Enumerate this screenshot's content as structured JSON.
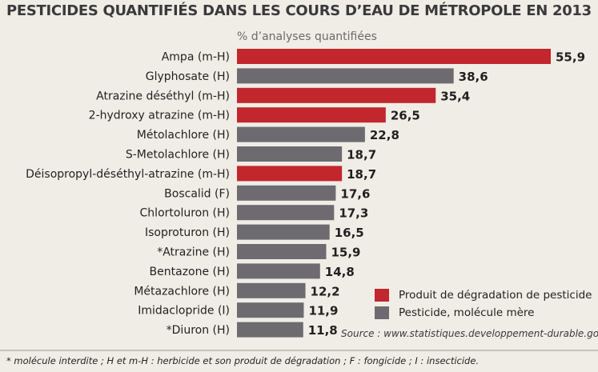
{
  "title": "PESTICIDES QUANTIFIÉS DANS LES COURS D’EAU DE MÉTROPOLE EN 2013",
  "subtitle": "% d’analyses quantifiées",
  "source": "Source : www.statistiques.developpement-durable.gouv.fr",
  "footnote": "* molécule interdite ; H et m-H : herbicide et son produit de dégradation ; F : fongicide ; I : insecticide.",
  "legend": [
    {
      "label": "Produit de dégradation de pesticide",
      "color": "#c1272d"
    },
    {
      "label": "Pesticide, molécule mère",
      "color": "#6d6b70"
    }
  ],
  "chart_data": {
    "type": "bar",
    "orientation": "horizontal",
    "categories": [
      "Ampa (m-H)",
      "Glyphosate (H)",
      "Atrazine déséthyl (m-H)",
      "2-hydroxy atrazine (m-H)",
      "Métolachlore (H)",
      "S-Metolachlore (H)",
      "Déisopropyl-déséthyl-atrazine (m-H)",
      "Boscalid (F)",
      "Chlortoluron (H)",
      "Isoproturon (H)",
      "*Atrazine (H)",
      "Bentazone (H)",
      "Métazachlore (H)",
      "Imidaclopride (I)",
      "*Diuron (H)"
    ],
    "values": [
      55.9,
      38.6,
      35.4,
      26.5,
      22.8,
      18.7,
      18.7,
      17.6,
      17.3,
      16.5,
      15.9,
      14.8,
      12.2,
      11.9,
      11.8
    ],
    "value_labels": [
      "55,9",
      "38,6",
      "35,4",
      "26,5",
      "22,8",
      "18,7",
      "18,7",
      "17,6",
      "17,3",
      "16,5",
      "15,9",
      "14,8",
      "12,2",
      "11,9",
      "11,8"
    ],
    "groups": [
      "Produit de dégradation de pesticide",
      "Pesticide, molécule mère",
      "Produit de dégradation de pesticide",
      "Produit de dégradation de pesticide",
      "Pesticide, molécule mère",
      "Pesticide, molécule mère",
      "Produit de dégradation de pesticide",
      "Pesticide, molécule mère",
      "Pesticide, molécule mère",
      "Pesticide, molécule mère",
      "Pesticide, molécule mère",
      "Pesticide, molécule mère",
      "Pesticide, molécule mère",
      "Pesticide, molécule mère",
      "Pesticide, molécule mère"
    ],
    "title": "PESTICIDES QUANTIFIÉS DANS LES COURS D’EAU DE MÉTROPOLE EN 2013",
    "xlabel": "% d’analyses quantifiées",
    "ylabel": "",
    "xlim": [
      0,
      55.9
    ],
    "grid": false,
    "legend_position": "bottom-right"
  }
}
